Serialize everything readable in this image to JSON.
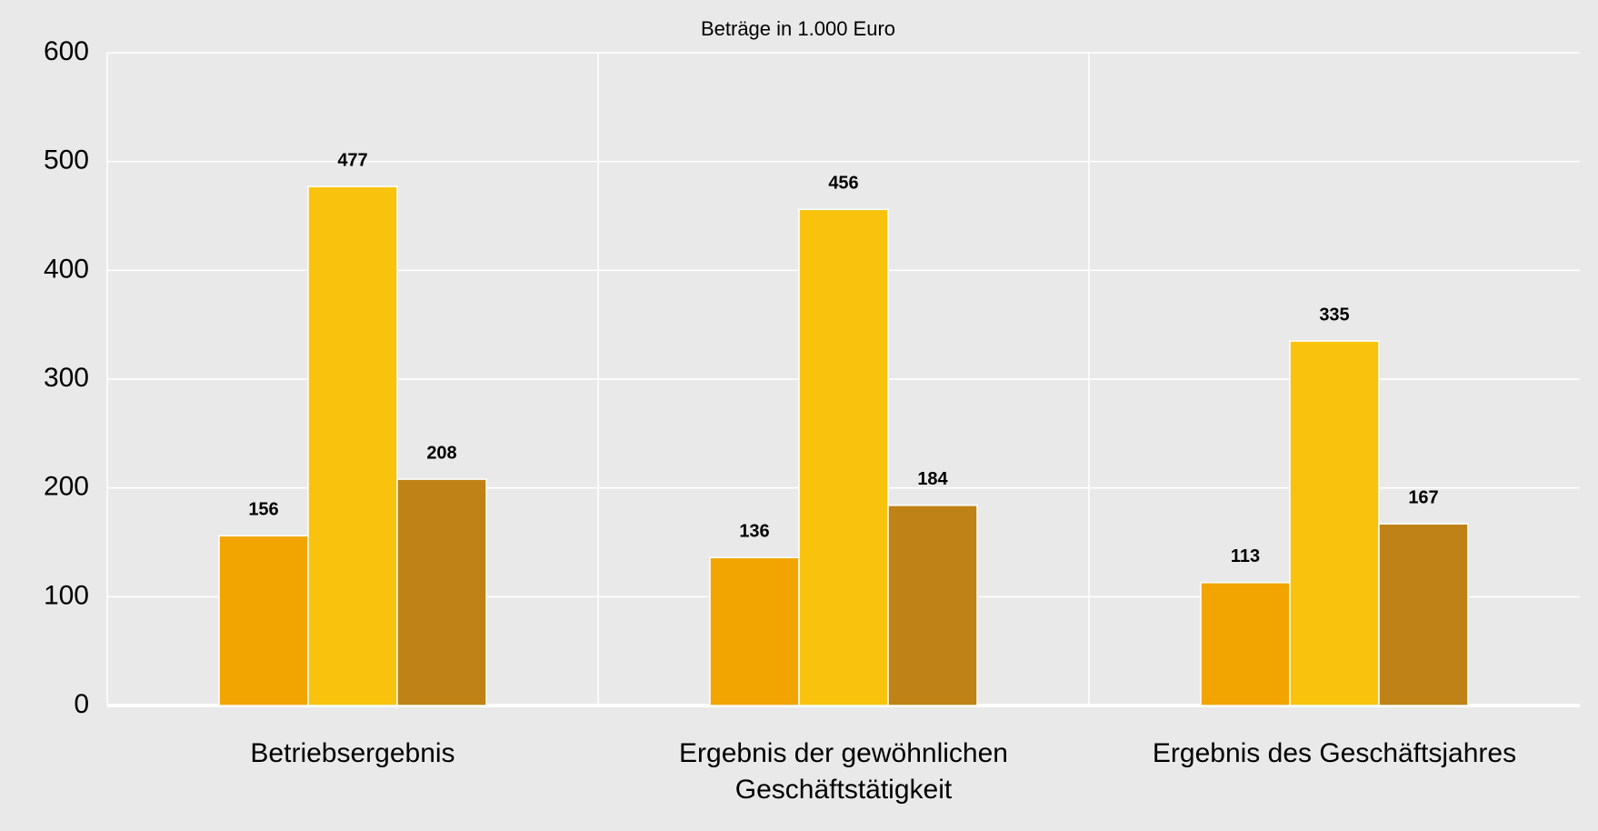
{
  "chart_data": {
    "type": "bar",
    "subtitle": "Beträge in 1.000 Euro",
    "categories": [
      "Betriebsergebnis",
      "Ergebnis der gewöhnlichen Geschäftstätigkeit",
      "Ergebnis des Geschäftsjahres"
    ],
    "series": [
      {
        "color": "#f2a500",
        "values": [
          156,
          136,
          113
        ]
      },
      {
        "color": "#f9c30d",
        "values": [
          477,
          456,
          335
        ]
      },
      {
        "color": "#bf8216",
        "values": [
          208,
          184,
          167
        ]
      }
    ],
    "ylim": [
      0,
      600
    ],
    "yticks": [
      0,
      100,
      200,
      300,
      400,
      500,
      600
    ],
    "grid": true
  }
}
